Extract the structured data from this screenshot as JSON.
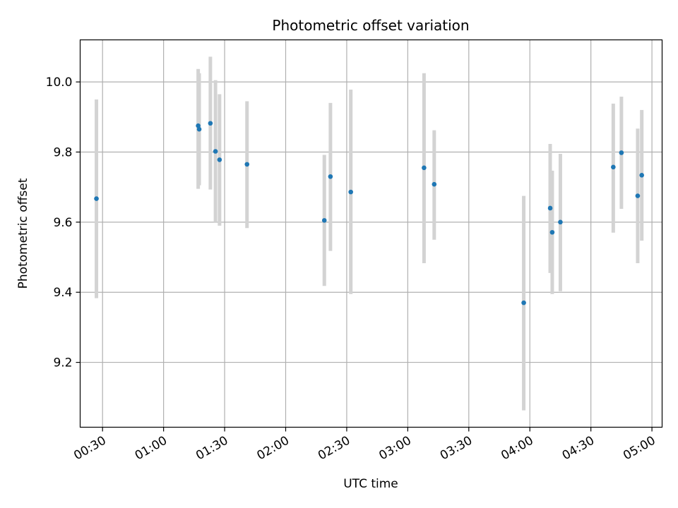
{
  "chart_data": {
    "type": "scatter",
    "title": "Photometric offset variation",
    "xlabel": "UTC time",
    "ylabel": "Photometric offset",
    "grid": true,
    "xlim": [
      "00:19",
      "05:05"
    ],
    "ylim": [
      9.015,
      10.12
    ],
    "x_ticks": [
      "00:30",
      "01:00",
      "01:30",
      "02:00",
      "02:30",
      "03:00",
      "03:30",
      "04:00",
      "04:30",
      "05:00"
    ],
    "y_ticks": [
      9.2,
      9.4,
      9.6,
      9.8,
      10.0
    ],
    "y_tick_labels": [
      "9.2",
      "9.4",
      "9.6",
      "9.8",
      "10.0"
    ],
    "point_color": "#1f77b4",
    "errorbar_color": "#d3d3d3",
    "series": [
      {
        "points": [
          {
            "x": "00:27",
            "y": 9.667,
            "ylow": 9.383,
            "yhigh": 9.95
          },
          {
            "x": "01:17",
            "y": 9.875,
            "ylow": 9.695,
            "yhigh": 10.037
          },
          {
            "x": "01:17:30",
            "y": 9.865,
            "ylow": 9.705,
            "yhigh": 10.025
          },
          {
            "x": "01:23",
            "y": 9.882,
            "ylow": 9.693,
            "yhigh": 10.072
          },
          {
            "x": "01:25:30",
            "y": 9.802,
            "ylow": 9.6,
            "yhigh": 10.005
          },
          {
            "x": "01:27:30",
            "y": 9.778,
            "ylow": 9.59,
            "yhigh": 9.965
          },
          {
            "x": "01:41",
            "y": 9.765,
            "ylow": 9.583,
            "yhigh": 9.945
          },
          {
            "x": "02:19",
            "y": 9.605,
            "ylow": 9.418,
            "yhigh": 9.792
          },
          {
            "x": "02:22",
            "y": 9.73,
            "ylow": 9.518,
            "yhigh": 9.94
          },
          {
            "x": "02:32",
            "y": 9.686,
            "ylow": 9.395,
            "yhigh": 9.978
          },
          {
            "x": "03:08",
            "y": 9.755,
            "ylow": 9.483,
            "yhigh": 10.025
          },
          {
            "x": "03:13",
            "y": 9.708,
            "ylow": 9.55,
            "yhigh": 9.862
          },
          {
            "x": "03:57",
            "y": 9.37,
            "ylow": 9.063,
            "yhigh": 9.675
          },
          {
            "x": "04:10",
            "y": 9.64,
            "ylow": 9.455,
            "yhigh": 9.823
          },
          {
            "x": "04:11",
            "y": 9.571,
            "ylow": 9.395,
            "yhigh": 9.747
          },
          {
            "x": "04:15",
            "y": 9.6,
            "ylow": 9.403,
            "yhigh": 9.795
          },
          {
            "x": "04:41",
            "y": 9.757,
            "ylow": 9.57,
            "yhigh": 9.938
          },
          {
            "x": "04:45",
            "y": 9.798,
            "ylow": 9.638,
            "yhigh": 9.958
          },
          {
            "x": "04:53",
            "y": 9.675,
            "ylow": 9.483,
            "yhigh": 9.867
          },
          {
            "x": "04:55",
            "y": 9.734,
            "ylow": 9.547,
            "yhigh": 9.92
          }
        ]
      }
    ]
  }
}
